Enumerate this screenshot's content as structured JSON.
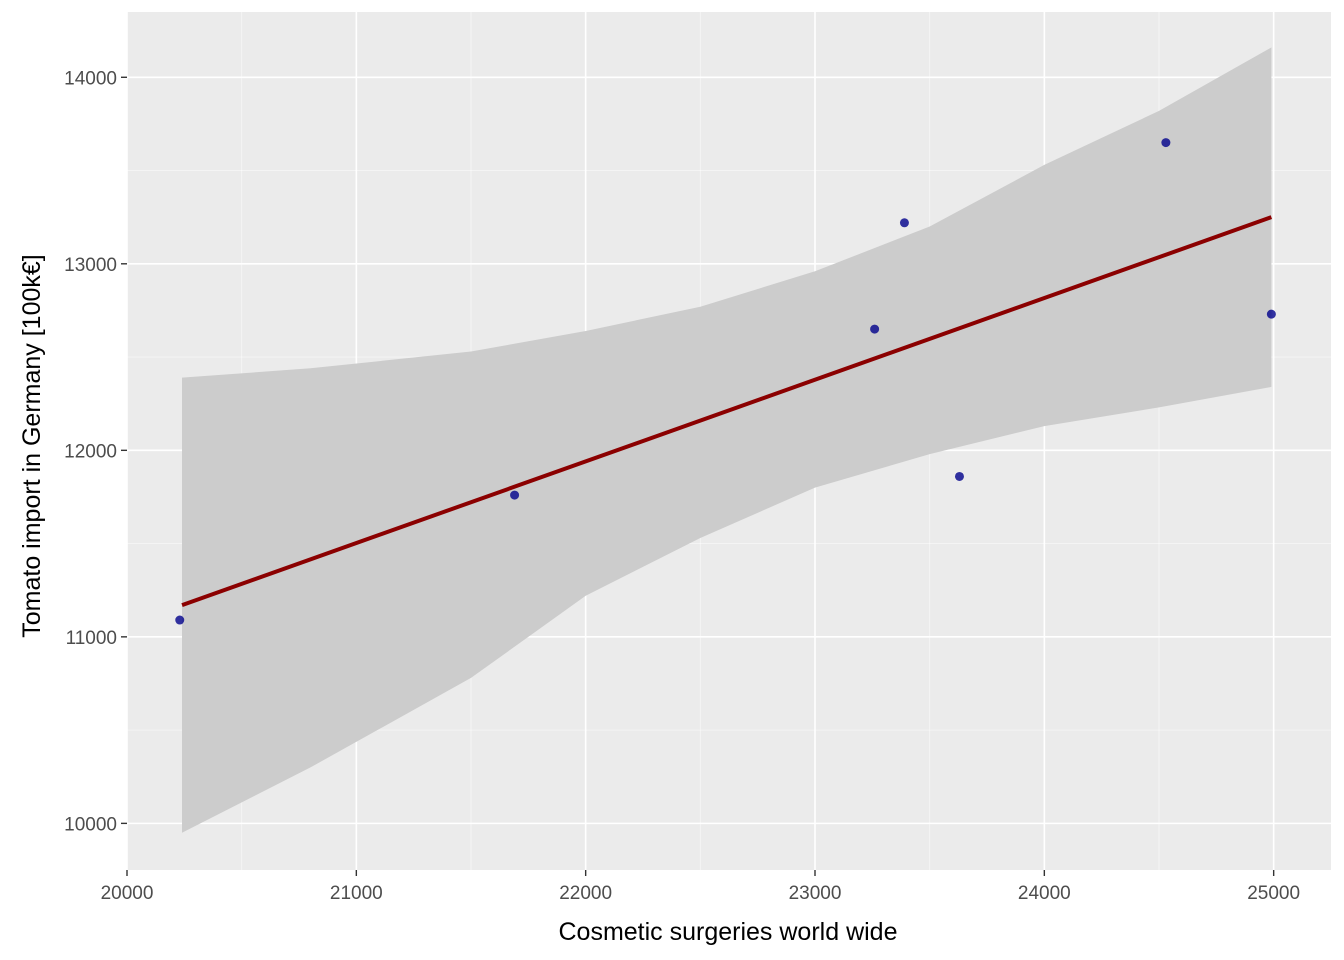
{
  "chart_data": {
    "type": "scatter",
    "title": "",
    "xlabel": "Cosmetic surgeries world wide",
    "ylabel": "Tomato import in Germany [100k€]",
    "xlim": [
      20000,
      25250
    ],
    "ylim": [
      9750,
      14350
    ],
    "x_ticks": [
      20000,
      21000,
      22000,
      23000,
      24000,
      25000
    ],
    "x_tick_labels": [
      "20000",
      "21000",
      "22000",
      "23000",
      "24000",
      "25000"
    ],
    "y_ticks": [
      10000,
      11000,
      12000,
      13000,
      14000
    ],
    "y_tick_labels": [
      "10000",
      "11000",
      "12000",
      "13000",
      "14000"
    ],
    "grid": true,
    "points": [
      {
        "x": 20230,
        "y": 11090
      },
      {
        "x": 21690,
        "y": 11760
      },
      {
        "x": 23260,
        "y": 12650
      },
      {
        "x": 23390,
        "y": 13220
      },
      {
        "x": 23630,
        "y": 11860
      },
      {
        "x": 24530,
        "y": 13650
      },
      {
        "x": 24990,
        "y": 12730
      }
    ],
    "fit_line": {
      "x": [
        20240,
        24990
      ],
      "y": [
        11170,
        13250
      ]
    },
    "confidence_band": {
      "x": [
        20240,
        20800,
        21500,
        22000,
        22500,
        23000,
        23500,
        24000,
        24500,
        24990
      ],
      "upper": [
        12390,
        12440,
        12530,
        12640,
        12770,
        12960,
        13200,
        13530,
        13820,
        14160
      ],
      "lower": [
        9950,
        10300,
        10780,
        11220,
        11530,
        11800,
        11980,
        12130,
        12230,
        12340
      ]
    },
    "colors": {
      "panel_background": "#ebebeb",
      "grid_major": "#ffffff",
      "band_fill": "#cccccc",
      "fit_line": "#8b0000",
      "points": "#00008b",
      "tick_text": "#4d4d4d"
    }
  }
}
